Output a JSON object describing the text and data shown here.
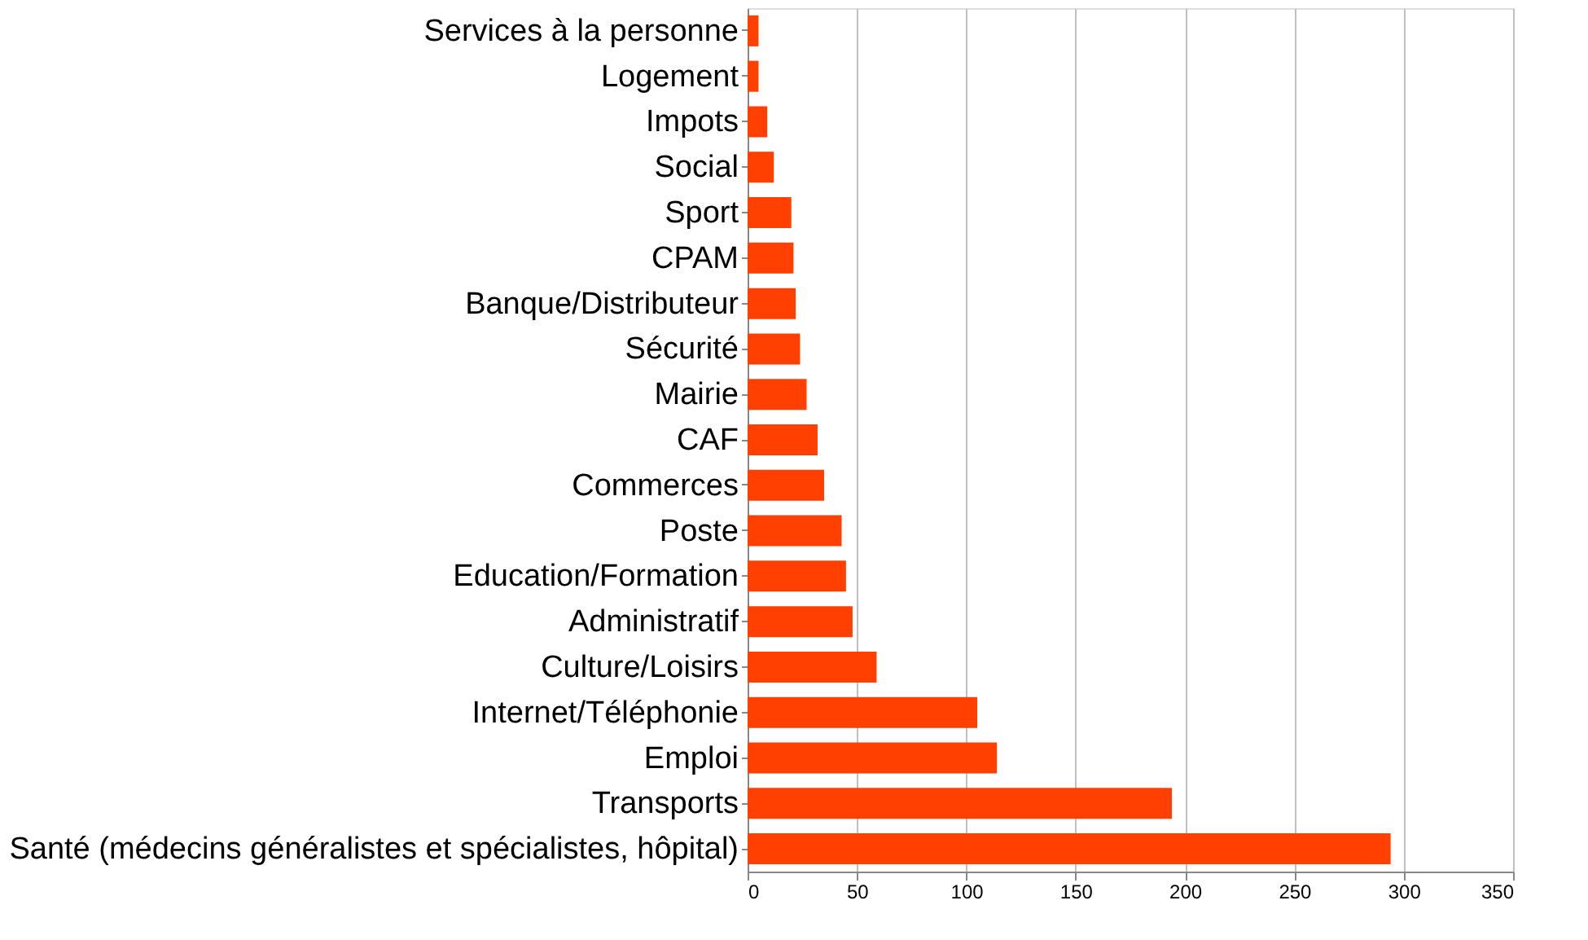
{
  "chart_data": {
    "type": "bar",
    "orientation": "horizontal",
    "categories": [
      "Services à la personne",
      "Logement",
      "Impots",
      "Social",
      "Sport",
      "CPAM",
      "Banque/Distributeur",
      "Sécurité",
      "Mairie",
      "CAF",
      "Commerces",
      "Poste",
      "Education/Formation",
      "Administratif",
      "Culture/Loisirs",
      "Internet/Téléphonie",
      "Emploi",
      "Transports",
      "Santé (médecins généralistes et spécialistes, hôpital)"
    ],
    "values": [
      5,
      5,
      9,
      12,
      20,
      21,
      22,
      24,
      27,
      32,
      35,
      43,
      45,
      48,
      59,
      105,
      114,
      194,
      294
    ],
    "color": "#ff4000",
    "xlim": [
      0,
      350
    ],
    "xticks": [
      0,
      50,
      100,
      150,
      200,
      250,
      300,
      350
    ],
    "grid": "x"
  }
}
